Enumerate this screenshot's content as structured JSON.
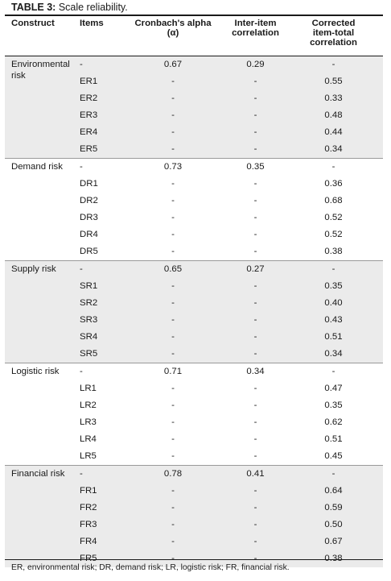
{
  "title": {
    "label": "TABLE 3:",
    "text": "Scale reliability."
  },
  "headers": {
    "construct": "Construct",
    "items": "Items",
    "alpha": [
      "Cronbach's alpha",
      "(α)"
    ],
    "inter": [
      "Inter-item",
      "correlation"
    ],
    "corrected": [
      "Corrected",
      "item-total",
      "correlation"
    ]
  },
  "groups": [
    {
      "construct": [
        "Environmental",
        "risk"
      ],
      "shade": true,
      "rows": [
        {
          "item": "-",
          "alpha": "0.67",
          "inter": "0.29",
          "corrected": "-"
        },
        {
          "item": "ER1",
          "alpha": "-",
          "inter": "-",
          "corrected": "0.55"
        },
        {
          "item": "ER2",
          "alpha": "-",
          "inter": "-",
          "corrected": "0.33"
        },
        {
          "item": "ER3",
          "alpha": "-",
          "inter": "-",
          "corrected": "0.48"
        },
        {
          "item": "ER4",
          "alpha": "-",
          "inter": "-",
          "corrected": "0.44"
        },
        {
          "item": "ER5",
          "alpha": "-",
          "inter": "-",
          "corrected": "0.34"
        }
      ]
    },
    {
      "construct": [
        "Demand risk"
      ],
      "shade": false,
      "rows": [
        {
          "item": "-",
          "alpha": "0.73",
          "inter": "0.35",
          "corrected": "-"
        },
        {
          "item": "DR1",
          "alpha": "-",
          "inter": "-",
          "corrected": "0.36"
        },
        {
          "item": "DR2",
          "alpha": "-",
          "inter": "-",
          "corrected": "0.68"
        },
        {
          "item": "DR3",
          "alpha": "-",
          "inter": "-",
          "corrected": "0.52"
        },
        {
          "item": "DR4",
          "alpha": "-",
          "inter": "-",
          "corrected": "0.52"
        },
        {
          "item": "DR5",
          "alpha": "-",
          "inter": "-",
          "corrected": "0.38"
        }
      ]
    },
    {
      "construct": [
        "Supply risk"
      ],
      "shade": true,
      "rows": [
        {
          "item": "-",
          "alpha": "0.65",
          "inter": "0.27",
          "corrected": "-"
        },
        {
          "item": "SR1",
          "alpha": "-",
          "inter": "-",
          "corrected": "0.35"
        },
        {
          "item": "SR2",
          "alpha": "-",
          "inter": "-",
          "corrected": "0.40"
        },
        {
          "item": "SR3",
          "alpha": "-",
          "inter": "-",
          "corrected": "0.43"
        },
        {
          "item": "SR4",
          "alpha": "-",
          "inter": "-",
          "corrected": "0.51"
        },
        {
          "item": "SR5",
          "alpha": "-",
          "inter": "-",
          "corrected": "0.34"
        }
      ]
    },
    {
      "construct": [
        "Logistic risk"
      ],
      "shade": false,
      "rows": [
        {
          "item": "-",
          "alpha": "0.71",
          "inter": "0.34",
          "corrected": "-"
        },
        {
          "item": "LR1",
          "alpha": "-",
          "inter": "-",
          "corrected": "0.47"
        },
        {
          "item": "LR2",
          "alpha": "-",
          "inter": "-",
          "corrected": "0.35"
        },
        {
          "item": "LR3",
          "alpha": "-",
          "inter": "-",
          "corrected": "0.62"
        },
        {
          "item": "LR4",
          "alpha": "-",
          "inter": "-",
          "corrected": "0.51"
        },
        {
          "item": "LR5",
          "alpha": "-",
          "inter": "-",
          "corrected": "0.45"
        }
      ]
    },
    {
      "construct": [
        "Financial risk"
      ],
      "shade": true,
      "rows": [
        {
          "item": "-",
          "alpha": "0.78",
          "inter": "0.41",
          "corrected": "-"
        },
        {
          "item": "FR1",
          "alpha": "-",
          "inter": "-",
          "corrected": "0.64"
        },
        {
          "item": "FR2",
          "alpha": "-",
          "inter": "-",
          "corrected": "0.59"
        },
        {
          "item": "FR3",
          "alpha": "-",
          "inter": "-",
          "corrected": "0.50"
        },
        {
          "item": "FR4",
          "alpha": "-",
          "inter": "-",
          "corrected": "0.67"
        },
        {
          "item": "FR5",
          "alpha": "-",
          "inter": "-",
          "corrected": "0.38"
        }
      ]
    }
  ],
  "footnote": "ER, environmental risk; DR, demand risk; LR, logistic risk; FR, financial risk.",
  "colors": {
    "shade": "#ebebeb",
    "rule": "#1a1a1a"
  }
}
